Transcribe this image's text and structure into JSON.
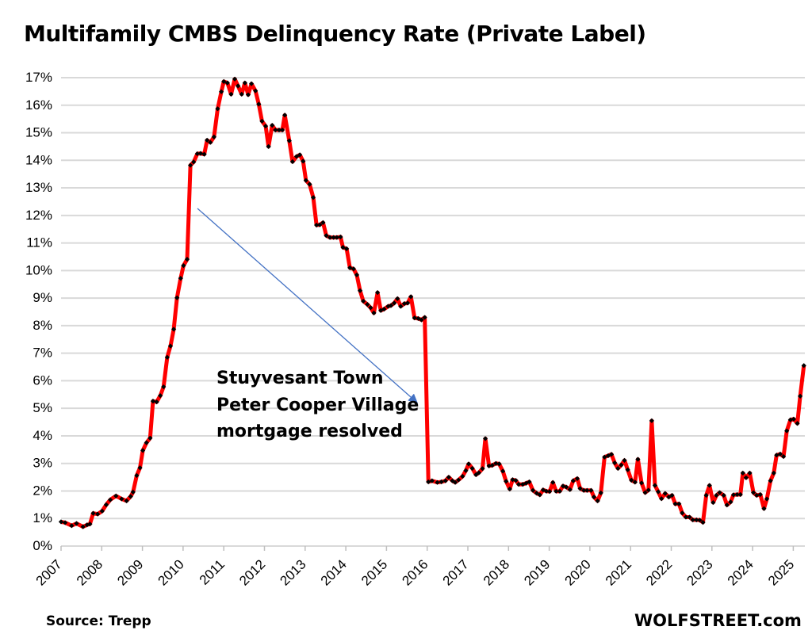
{
  "chart_data": {
    "type": "line",
    "title": "Multifamily CMBS Delinquency Rate (Private Label)",
    "xlabel": "",
    "ylabel": "",
    "ylim": [
      0,
      17
    ],
    "xlim": [
      2007,
      2025.3
    ],
    "y_tick_labels": [
      "0%",
      "1%",
      "2%",
      "3%",
      "4%",
      "5%",
      "6%",
      "7%",
      "8%",
      "9%",
      "10%",
      "11%",
      "12%",
      "13%",
      "14%",
      "15%",
      "16%",
      "17%"
    ],
    "x_tick_labels": [
      "2007",
      "2008",
      "2009",
      "2010",
      "2011",
      "2012",
      "2013",
      "2014",
      "2015",
      "2016",
      "2017",
      "2018",
      "2019",
      "2020",
      "2021",
      "2022",
      "2023",
      "2024",
      "2025"
    ],
    "grid": "horizontal",
    "line_color": "#ff0000",
    "marker_color": "#000000",
    "annotation": {
      "lines": [
        "Stuyvesant Town",
        "Peter Cooper Village",
        "mortgage resolved"
      ],
      "arrow_color": "#4472c4"
    },
    "series": [
      {
        "x": [
          2007.0,
          2007.1,
          2007.26,
          2007.38,
          2007.54,
          2007.64,
          2007.71,
          2007.79,
          2007.9,
          2008.01,
          2008.11,
          2008.21,
          2008.35,
          2008.49,
          2008.61,
          2008.71,
          2008.77,
          2008.86,
          2008.94,
          2009.01,
          2009.1,
          2009.19,
          2009.26,
          2009.35,
          2009.44,
          2009.52,
          2009.61,
          2009.69,
          2009.77,
          2009.85,
          2009.94,
          2010.01,
          2010.1,
          2010.18,
          2010.26,
          2010.35,
          2010.43,
          2010.52,
          2010.59,
          2010.67,
          2010.76,
          2010.85,
          2010.94,
          2011.0,
          2011.09,
          2011.18,
          2011.27,
          2011.35,
          2011.44,
          2011.52,
          2011.6,
          2011.68,
          2011.78,
          2011.86,
          2011.94,
          2012.03,
          2012.1,
          2012.19,
          2012.27,
          2012.36,
          2012.44,
          2012.5,
          2012.61,
          2012.69,
          2012.79,
          2012.87,
          2012.95,
          2013.02,
          2013.11,
          2013.2,
          2013.28,
          2013.36,
          2013.44,
          2013.52,
          2013.61,
          2013.7,
          2013.78,
          2013.87,
          2013.93,
          2014.02,
          2014.1,
          2014.19,
          2014.27,
          2014.35,
          2014.43,
          2014.53,
          2014.61,
          2014.69,
          2014.78,
          2014.86,
          2014.94,
          2015.04,
          2015.11,
          2015.19,
          2015.27,
          2015.35,
          2015.44,
          2015.52,
          2015.6,
          2015.69,
          2015.78,
          2015.86,
          2015.94,
          2016.03,
          2016.12,
          2016.25,
          2016.35,
          2016.45,
          2016.53,
          2016.62,
          2016.69,
          2016.77,
          2016.87,
          2016.95,
          2017.02,
          2017.11,
          2017.2,
          2017.27,
          2017.36,
          2017.43,
          2017.52,
          2017.6,
          2017.69,
          2017.77,
          2017.86,
          2017.94,
          2018.03,
          2018.1,
          2018.18,
          2018.25,
          2018.35,
          2018.43,
          2018.51,
          2018.6,
          2018.69,
          2018.77,
          2018.85,
          2018.93,
          2019.01,
          2019.09,
          2019.17,
          2019.26,
          2019.34,
          2019.42,
          2019.51,
          2019.59,
          2019.69,
          2019.76,
          2019.85,
          2019.93,
          2020.03,
          2020.1,
          2020.19,
          2020.27,
          2020.36,
          2020.45,
          2020.53,
          2020.61,
          2020.69,
          2020.77,
          2020.85,
          2020.93,
          2021.02,
          2021.11,
          2021.18,
          2021.27,
          2021.36,
          2021.44,
          2021.52,
          2021.6,
          2021.68,
          2021.76,
          2021.85,
          2021.94,
          2022.02,
          2022.1,
          2022.19,
          2022.27,
          2022.36,
          2022.45,
          2022.53,
          2022.62,
          2022.7,
          2022.78,
          2022.86,
          2022.94,
          2023.03,
          2023.11,
          2023.19,
          2023.29,
          2023.37,
          2023.46,
          2023.53,
          2023.62,
          2023.7,
          2023.76,
          2023.84,
          2023.93,
          2024.02,
          2024.1,
          2024.19,
          2024.28,
          2024.35,
          2024.44,
          2024.52,
          2024.59,
          2024.68,
          2024.76,
          2024.84,
          2024.93,
          2025.01,
          2025.1,
          2025.17,
          2025.26
        ],
        "y": [
          0.88,
          0.85,
          0.74,
          0.82,
          0.7,
          0.77,
          0.8,
          1.19,
          1.16,
          1.27,
          1.5,
          1.68,
          1.82,
          1.71,
          1.64,
          1.8,
          1.96,
          2.56,
          2.84,
          3.47,
          3.75,
          3.92,
          5.26,
          5.23,
          5.46,
          5.78,
          6.85,
          7.26,
          7.87,
          9.01,
          9.72,
          10.18,
          10.41,
          13.82,
          13.94,
          14.24,
          14.25,
          14.22,
          14.73,
          14.65,
          14.85,
          15.87,
          16.49,
          16.86,
          16.81,
          16.4,
          16.95,
          16.7,
          16.4,
          16.81,
          16.38,
          16.78,
          16.52,
          16.04,
          15.42,
          15.24,
          14.5,
          15.27,
          15.1,
          15.1,
          15.1,
          15.64,
          14.71,
          13.95,
          14.14,
          14.2,
          13.97,
          13.27,
          13.13,
          12.65,
          11.65,
          11.66,
          11.74,
          11.27,
          11.2,
          11.2,
          11.2,
          11.22,
          10.84,
          10.79,
          10.1,
          10.06,
          9.84,
          9.27,
          8.89,
          8.77,
          8.65,
          8.46,
          9.2,
          8.55,
          8.6,
          8.7,
          8.73,
          8.82,
          8.98,
          8.7,
          8.8,
          8.82,
          9.05,
          8.28,
          8.26,
          8.21,
          8.3,
          2.33,
          2.37,
          2.31,
          2.33,
          2.37,
          2.5,
          2.37,
          2.31,
          2.4,
          2.53,
          2.74,
          2.98,
          2.82,
          2.59,
          2.66,
          2.81,
          3.9,
          2.91,
          2.93,
          3.0,
          2.98,
          2.72,
          2.35,
          2.07,
          2.41,
          2.38,
          2.24,
          2.24,
          2.28,
          2.33,
          2.02,
          1.92,
          1.86,
          2.04,
          1.99,
          1.98,
          2.31,
          1.99,
          1.99,
          2.18,
          2.14,
          2.05,
          2.37,
          2.45,
          2.09,
          2.02,
          2.02,
          2.02,
          1.78,
          1.64,
          1.93,
          3.23,
          3.28,
          3.33,
          3.02,
          2.82,
          2.94,
          3.11,
          2.77,
          2.39,
          2.32,
          3.15,
          2.29,
          1.94,
          2.03,
          4.55,
          2.2,
          1.97,
          1.72,
          1.91,
          1.78,
          1.84,
          1.53,
          1.53,
          1.2,
          1.05,
          1.05,
          0.95,
          0.95,
          0.94,
          0.86,
          1.84,
          2.2,
          1.58,
          1.84,
          1.94,
          1.84,
          1.49,
          1.6,
          1.86,
          1.87,
          1.87,
          2.65,
          2.48,
          2.65,
          1.94,
          1.84,
          1.87,
          1.36,
          1.71,
          2.37,
          2.65,
          3.3,
          3.34,
          3.25,
          4.18,
          4.58,
          4.61,
          4.45,
          5.44,
          6.55
        ]
      }
    ]
  },
  "footer": {
    "source": "Source: Trepp",
    "brand": "WOLFSTREET.com"
  }
}
